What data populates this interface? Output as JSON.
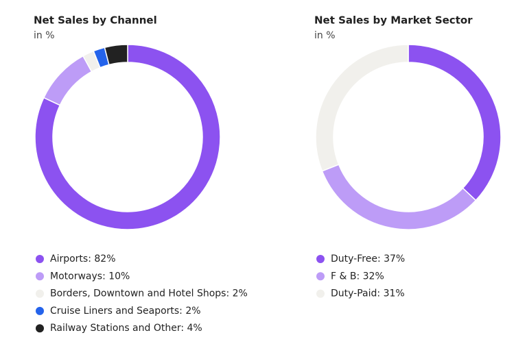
{
  "chart_data": [
    {
      "type": "pie",
      "title": "Net Sales by Channel",
      "subtitle": "in %",
      "categories": [
        "Airports: 82%",
        "Motorways: 10%",
        "Borders, Downtown and Hotel Shops: 2%",
        "Cruise Liners and Seaports: 2%",
        "Railway Stations and Other: 4%"
      ],
      "values": [
        82,
        10,
        2,
        2,
        4
      ],
      "colors": [
        "#8c52f0",
        "#bd9cf7",
        "#f1f0ec",
        "#2463eb",
        "#222222"
      ]
    },
    {
      "type": "pie",
      "title": "Net Sales by Market Sector",
      "subtitle": "in %",
      "categories": [
        "Duty-Free: 37%",
        "F & B: 32%",
        "Duty-Paid: 31%"
      ],
      "values": [
        37,
        32,
        31
      ],
      "colors": [
        "#8c52f0",
        "#bd9cf7",
        "#f1f0ec"
      ]
    }
  ]
}
